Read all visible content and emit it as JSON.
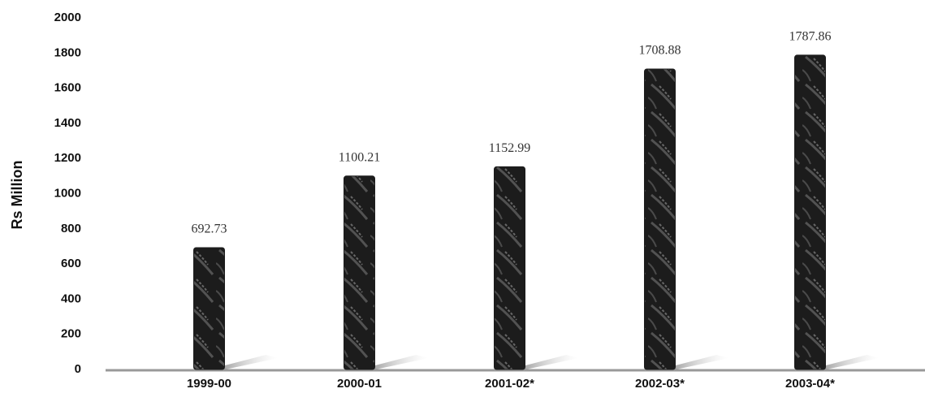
{
  "chart_data": {
    "type": "bar",
    "y_label": "Rs Million",
    "categories": [
      "1999-00",
      "2000-01",
      "2001-02*",
      "2002-03*",
      "2003-04*"
    ],
    "values": [
      692.73,
      1100.21,
      1152.99,
      1708.88,
      1787.86
    ],
    "color": "#1c1c1c",
    "ylim": [
      0,
      2000
    ],
    "yticks": [
      0,
      200,
      400,
      600,
      800,
      1000,
      1200,
      1400,
      1600,
      1800,
      2000
    ]
  }
}
